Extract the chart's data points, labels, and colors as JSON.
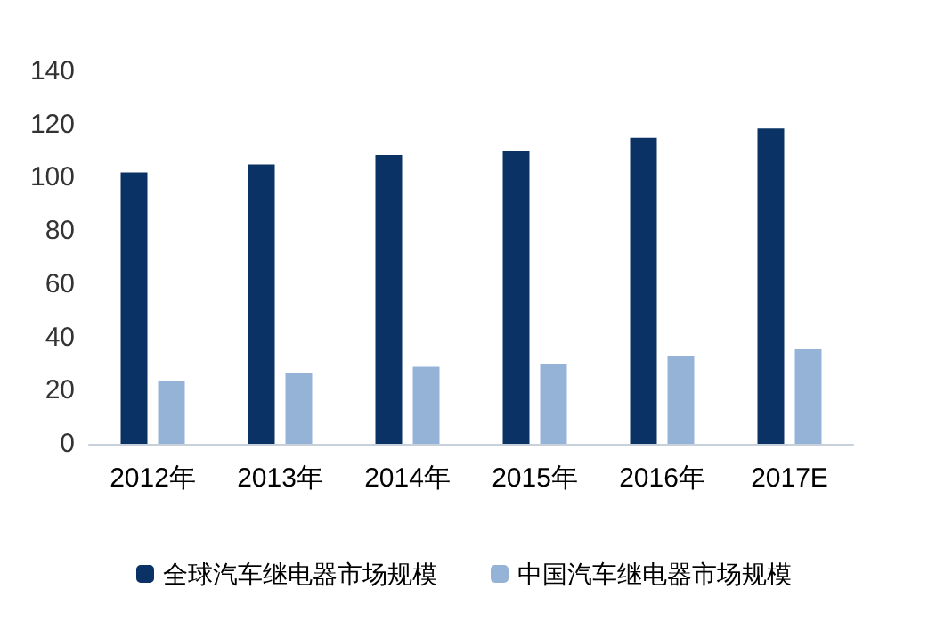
{
  "chart_data": {
    "type": "bar",
    "categories": [
      "2012年",
      "2013年",
      "2014年",
      "2015年",
      "2016年",
      "2017E"
    ],
    "series": [
      {
        "name": "全球汽车继电器市场规模",
        "color": "#0a3264",
        "values": [
          102,
          105,
          108.5,
          110,
          115,
          118.5
        ]
      },
      {
        "name": "中国汽车继电器市场规模",
        "color": "#95b3d7",
        "values": [
          23.5,
          26.5,
          29,
          30,
          33,
          35.5
        ]
      }
    ],
    "ylim": [
      0,
      140
    ],
    "yticks": [
      0,
      20,
      40,
      60,
      80,
      100,
      120,
      140
    ],
    "grid": false,
    "legend": "bottom"
  }
}
